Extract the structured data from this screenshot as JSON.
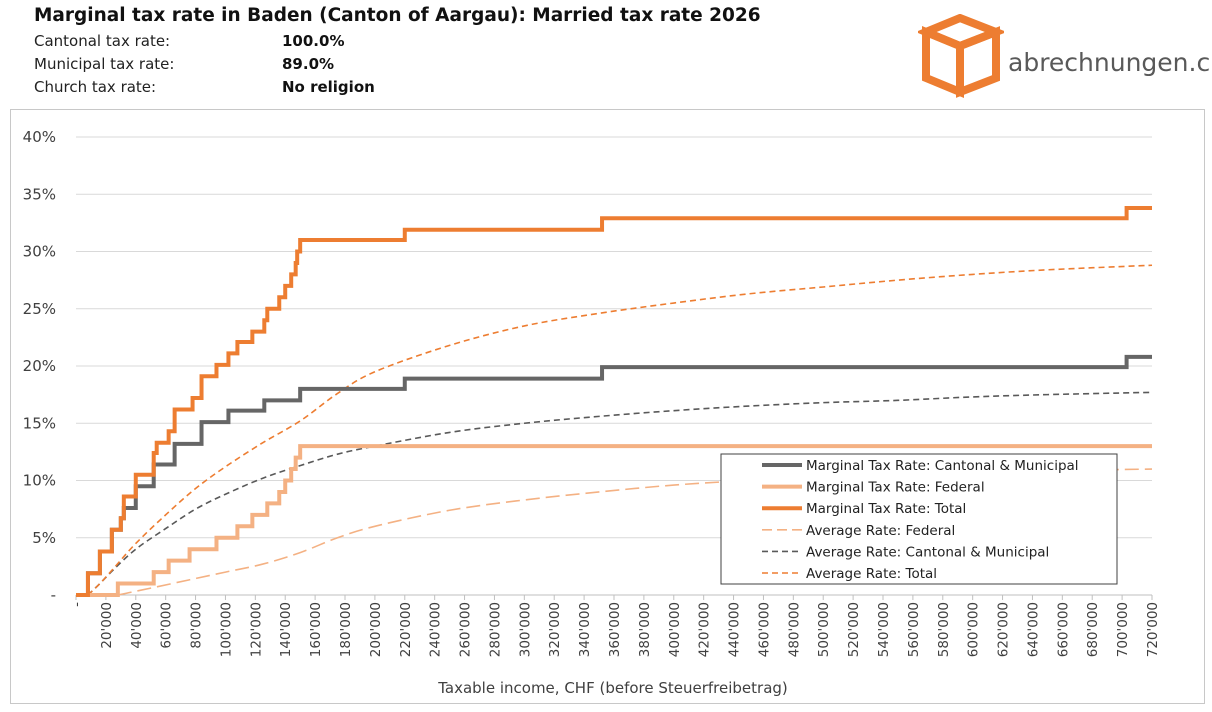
{
  "header": {
    "title": "Marginal tax rate in Baden (Canton of Aargau): Married tax rate 2026",
    "rates": [
      {
        "label": "Cantonal tax rate:",
        "value": "100.0%"
      },
      {
        "label": "Municipal tax rate:",
        "value": "89.0%"
      },
      {
        "label": "Church tax rate:",
        "value": "No religion"
      }
    ]
  },
  "logo": {
    "text": "abrechnungen.ch",
    "icon": "orange-box-icon",
    "color": "#ed7d31"
  },
  "chart_data": {
    "type": "line",
    "xlabel": "Taxable income, CHF (before Steuerfreibetrag)",
    "ylabel": "",
    "xlim": [
      0,
      720000
    ],
    "ylim": [
      0,
      40
    ],
    "grid": true,
    "legend_position": "bottom-right",
    "y_ticks": [
      {
        "v": 0,
        "label": "-"
      },
      {
        "v": 5,
        "label": "5%"
      },
      {
        "v": 10,
        "label": "10%"
      },
      {
        "v": 15,
        "label": "15%"
      },
      {
        "v": 20,
        "label": "20%"
      },
      {
        "v": 25,
        "label": "25%"
      },
      {
        "v": 30,
        "label": "30%"
      },
      {
        "v": 35,
        "label": "35%"
      },
      {
        "v": 40,
        "label": "40%"
      }
    ],
    "x_tick_labels": [
      "-",
      "20'000",
      "40'000",
      "60'000",
      "80'000",
      "100'000",
      "120'000",
      "140'000",
      "160'000",
      "180'000",
      "200'000",
      "220'000",
      "240'000",
      "260'000",
      "280'000",
      "300'000",
      "320'000",
      "340'000",
      "360'000",
      "380'000",
      "400'000",
      "420'000",
      "440'000",
      "460'000",
      "480'000",
      "500'000",
      "520'000",
      "540'000",
      "560'000",
      "580'000",
      "600'000",
      "620'000",
      "640'000",
      "660'000",
      "680'000",
      "700'000",
      "720'000"
    ],
    "series": [
      {
        "name": "Marginal Tax Rate: Cantonal & Municipal",
        "style": "step",
        "color": "#666666",
        "dash": false,
        "width": 4,
        "points": [
          [
            0,
            0
          ],
          [
            8000,
            0
          ],
          [
            8000,
            1.9
          ],
          [
            16000,
            1.9
          ],
          [
            16000,
            3.8
          ],
          [
            24000,
            3.8
          ],
          [
            24000,
            5.7
          ],
          [
            30000,
            5.7
          ],
          [
            30000,
            6.7
          ],
          [
            32000,
            6.7
          ],
          [
            32000,
            7.6
          ],
          [
            40000,
            7.6
          ],
          [
            40000,
            9.5
          ],
          [
            52000,
            9.5
          ],
          [
            52000,
            11.4
          ],
          [
            66000,
            11.4
          ],
          [
            66000,
            13.2
          ],
          [
            84000,
            13.2
          ],
          [
            84000,
            15.1
          ],
          [
            102000,
            15.1
          ],
          [
            102000,
            16.1
          ],
          [
            126000,
            16.1
          ],
          [
            126000,
            17.0
          ],
          [
            150000,
            17.0
          ],
          [
            150000,
            18.0
          ],
          [
            220000,
            18.0
          ],
          [
            220000,
            18.9
          ],
          [
            352000,
            18.9
          ],
          [
            352000,
            19.9
          ],
          [
            703000,
            19.9
          ],
          [
            703000,
            20.8
          ],
          [
            720000,
            20.8
          ]
        ]
      },
      {
        "name": "Marginal Tax Rate: Federal",
        "style": "step",
        "color": "#f4b183",
        "dash": false,
        "width": 4,
        "points": [
          [
            0,
            0
          ],
          [
            28000,
            0
          ],
          [
            28000,
            1.0
          ],
          [
            52000,
            1.0
          ],
          [
            52000,
            2.0
          ],
          [
            62000,
            2.0
          ],
          [
            62000,
            3.0
          ],
          [
            76000,
            3.0
          ],
          [
            76000,
            4.0
          ],
          [
            94000,
            4.0
          ],
          [
            94000,
            5.0
          ],
          [
            108000,
            5.0
          ],
          [
            108000,
            6.0
          ],
          [
            118000,
            6.0
          ],
          [
            118000,
            7.0
          ],
          [
            128000,
            7.0
          ],
          [
            128000,
            8.0
          ],
          [
            136000,
            8.0
          ],
          [
            136000,
            9.0
          ],
          [
            140000,
            9.0
          ],
          [
            140000,
            10.0
          ],
          [
            144000,
            10.0
          ],
          [
            144000,
            11.0
          ],
          [
            147000,
            11.0
          ],
          [
            147000,
            12.0
          ],
          [
            150000,
            12.0
          ],
          [
            150000,
            13.0
          ],
          [
            720000,
            13.0
          ]
        ]
      },
      {
        "name": "Marginal Tax Rate: Total",
        "style": "step",
        "color": "#ed7d31",
        "dash": false,
        "width": 4,
        "points": [
          [
            0,
            0
          ],
          [
            8000,
            0
          ],
          [
            8000,
            1.9
          ],
          [
            16000,
            1.9
          ],
          [
            16000,
            3.8
          ],
          [
            24000,
            3.8
          ],
          [
            24000,
            5.7
          ],
          [
            30000,
            5.7
          ],
          [
            30000,
            6.7
          ],
          [
            32000,
            6.7
          ],
          [
            32000,
            8.6
          ],
          [
            40000,
            8.6
          ],
          [
            40000,
            10.5
          ],
          [
            52000,
            10.5
          ],
          [
            52000,
            12.4
          ],
          [
            54000,
            12.4
          ],
          [
            54000,
            13.3
          ],
          [
            62000,
            13.3
          ],
          [
            62000,
            14.3
          ],
          [
            66000,
            14.3
          ],
          [
            66000,
            16.2
          ],
          [
            78000,
            16.2
          ],
          [
            78000,
            17.2
          ],
          [
            84000,
            17.2
          ],
          [
            84000,
            19.1
          ],
          [
            94000,
            19.1
          ],
          [
            94000,
            20.1
          ],
          [
            102000,
            20.1
          ],
          [
            102000,
            21.1
          ],
          [
            108000,
            21.1
          ],
          [
            108000,
            22.1
          ],
          [
            118000,
            22.1
          ],
          [
            118000,
            23.0
          ],
          [
            126000,
            23.0
          ],
          [
            126000,
            24.0
          ],
          [
            128000,
            24.0
          ],
          [
            128000,
            25.0
          ],
          [
            136000,
            25.0
          ],
          [
            136000,
            26.0
          ],
          [
            140000,
            26.0
          ],
          [
            140000,
            27.0
          ],
          [
            144000,
            27.0
          ],
          [
            144000,
            28.0
          ],
          [
            147000,
            28.0
          ],
          [
            147000,
            29.0
          ],
          [
            148000,
            29.0
          ],
          [
            148000,
            30.0
          ],
          [
            150000,
            30.0
          ],
          [
            150000,
            31.0
          ],
          [
            220000,
            31.0
          ],
          [
            220000,
            31.9
          ],
          [
            352000,
            31.9
          ],
          [
            352000,
            32.9
          ],
          [
            703000,
            32.9
          ],
          [
            703000,
            33.8
          ],
          [
            720000,
            33.8
          ]
        ]
      },
      {
        "name": "Average Rate: Federal",
        "style": "smooth",
        "color": "#f4b183",
        "dash": true,
        "dasharray": "14,6",
        "width": 1.6,
        "points": [
          [
            28000,
            0
          ],
          [
            50000,
            0.6
          ],
          [
            75000,
            1.3
          ],
          [
            100000,
            2.0
          ],
          [
            125000,
            2.7
          ],
          [
            150000,
            3.7
          ],
          [
            175000,
            5.0
          ],
          [
            200000,
            6.0
          ],
          [
            250000,
            7.4
          ],
          [
            300000,
            8.3
          ],
          [
            350000,
            9.0
          ],
          [
            400000,
            9.6
          ],
          [
            450000,
            10.0
          ],
          [
            500000,
            10.3
          ],
          [
            550000,
            10.5
          ],
          [
            600000,
            10.7
          ],
          [
            650000,
            10.85
          ],
          [
            720000,
            11.0
          ]
        ]
      },
      {
        "name": "Average Rate: Cantonal & Municipal",
        "style": "smooth",
        "color": "#595959",
        "dash": true,
        "dasharray": "6,4",
        "width": 1.6,
        "points": [
          [
            8000,
            0
          ],
          [
            16000,
            1.0
          ],
          [
            25000,
            2.2
          ],
          [
            40000,
            4.0
          ],
          [
            60000,
            5.8
          ],
          [
            80000,
            7.5
          ],
          [
            100000,
            8.8
          ],
          [
            125000,
            10.2
          ],
          [
            150000,
            11.3
          ],
          [
            175000,
            12.3
          ],
          [
            200000,
            13.0
          ],
          [
            250000,
            14.2
          ],
          [
            300000,
            15.0
          ],
          [
            350000,
            15.6
          ],
          [
            400000,
            16.1
          ],
          [
            450000,
            16.5
          ],
          [
            500000,
            16.8
          ],
          [
            550000,
            17.0
          ],
          [
            600000,
            17.3
          ],
          [
            650000,
            17.5
          ],
          [
            720000,
            17.7
          ]
        ]
      },
      {
        "name": "Average Rate: Total",
        "style": "smooth",
        "color": "#ed7d31",
        "dash": true,
        "dasharray": "6,4",
        "width": 1.6,
        "points": [
          [
            8000,
            0
          ],
          [
            16000,
            1.0
          ],
          [
            25000,
            2.3
          ],
          [
            40000,
            4.5
          ],
          [
            60000,
            7.0
          ],
          [
            80000,
            9.3
          ],
          [
            100000,
            11.2
          ],
          [
            125000,
            13.3
          ],
          [
            150000,
            15.2
          ],
          [
            175000,
            17.6
          ],
          [
            200000,
            19.5
          ],
          [
            250000,
            21.8
          ],
          [
            300000,
            23.5
          ],
          [
            350000,
            24.6
          ],
          [
            400000,
            25.5
          ],
          [
            450000,
            26.3
          ],
          [
            500000,
            26.9
          ],
          [
            550000,
            27.5
          ],
          [
            600000,
            28.0
          ],
          [
            650000,
            28.4
          ],
          [
            720000,
            28.8
          ]
        ]
      }
    ]
  }
}
